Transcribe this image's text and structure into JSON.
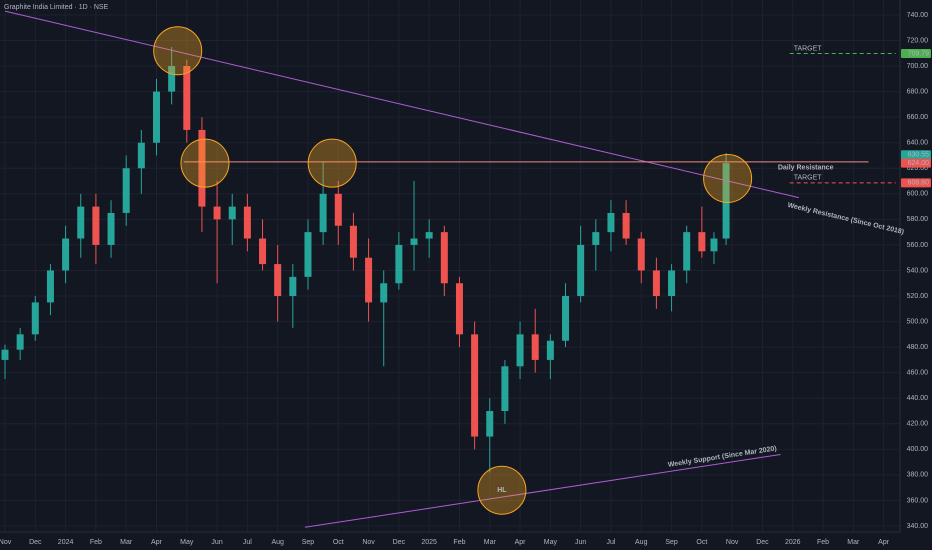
{
  "chart_data": {
    "type": "candlestick",
    "title": "Graphite India Limited · 1D · NSE",
    "x": [
      0,
      0.5,
      1,
      1.5,
      2,
      2.5,
      3,
      3.5,
      4,
      4.5,
      5,
      5.5,
      6,
      6.5,
      7,
      7.5,
      8,
      8.5,
      9,
      9.5,
      10,
      10.5,
      11,
      11.5,
      12,
      12.5,
      13,
      13.5,
      14,
      14.5,
      15,
      15.5,
      16,
      16.5,
      17,
      17.5,
      18,
      18.5,
      19,
      19.5,
      20,
      20.5,
      21,
      21.5,
      22,
      22.5,
      23,
      23.4,
      23.8
    ],
    "open": [
      470,
      478,
      490,
      515,
      540,
      565,
      590,
      560,
      585,
      620,
      640,
      680,
      700,
      650,
      590,
      580,
      590,
      565,
      545,
      520,
      535,
      570,
      600,
      575,
      550,
      515,
      530,
      560,
      565,
      570,
      530,
      490,
      410,
      430,
      465,
      490,
      470,
      485,
      520,
      560,
      570,
      585,
      565,
      540,
      520,
      540,
      570,
      555,
      565
    ],
    "high": [
      482,
      495,
      520,
      545,
      575,
      600,
      600,
      595,
      630,
      650,
      690,
      715,
      705,
      660,
      610,
      600,
      600,
      580,
      560,
      545,
      580,
      625,
      610,
      585,
      565,
      540,
      570,
      610,
      580,
      575,
      535,
      500,
      440,
      470,
      500,
      510,
      490,
      530,
      575,
      580,
      595,
      595,
      570,
      550,
      545,
      575,
      590,
      570,
      632
    ],
    "low": [
      455,
      470,
      485,
      505,
      530,
      550,
      545,
      550,
      575,
      600,
      630,
      670,
      640,
      570,
      530,
      560,
      555,
      540,
      500,
      495,
      525,
      560,
      560,
      540,
      500,
      465,
      525,
      540,
      550,
      520,
      480,
      400,
      382,
      420,
      455,
      460,
      455,
      480,
      515,
      540,
      555,
      560,
      530,
      510,
      508,
      530,
      550,
      545,
      560
    ],
    "close": [
      478,
      490,
      515,
      540,
      565,
      590,
      560,
      585,
      620,
      640,
      680,
      700,
      650,
      590,
      580,
      590,
      565,
      545,
      520,
      535,
      570,
      600,
      575,
      550,
      515,
      530,
      560,
      565,
      570,
      530,
      490,
      410,
      430,
      465,
      490,
      470,
      485,
      520,
      560,
      570,
      585,
      565,
      540,
      520,
      540,
      570,
      555,
      565,
      624
    ],
    "up_color": "#26a69a",
    "down_color": "#ef5350",
    "xlim": [
      -0.165,
      29.54
    ],
    "ylim": [
      335.3,
      751.7
    ],
    "xticks": [
      {
        "value": 0,
        "label": "Nov"
      },
      {
        "value": 1,
        "label": "Dec"
      },
      {
        "value": 2,
        "label": "2024"
      },
      {
        "value": 3,
        "label": "Feb"
      },
      {
        "value": 4,
        "label": "Mar"
      },
      {
        "value": 5,
        "label": "Apr"
      },
      {
        "value": 6,
        "label": "May"
      },
      {
        "value": 7,
        "label": "Jun"
      },
      {
        "value": 8,
        "label": "Jul"
      },
      {
        "value": 9,
        "label": "Aug"
      },
      {
        "value": 10,
        "label": "Sep"
      },
      {
        "value": 11,
        "label": "Oct"
      },
      {
        "value": 12,
        "label": "Nov"
      },
      {
        "value": 13,
        "label": "Dec"
      },
      {
        "value": 14,
        "label": "2025"
      },
      {
        "value": 15,
        "label": "Feb"
      },
      {
        "value": 16,
        "label": "Mar"
      },
      {
        "value": 17,
        "label": "Apr"
      },
      {
        "value": 18,
        "label": "May"
      },
      {
        "value": 19,
        "label": "Jun"
      },
      {
        "value": 20,
        "label": "Jul"
      },
      {
        "value": 21,
        "label": "Aug"
      },
      {
        "value": 22,
        "label": "Sep"
      },
      {
        "value": 23,
        "label": "Oct"
      },
      {
        "value": 24,
        "label": "Nov"
      },
      {
        "value": 25,
        "label": "Dec"
      },
      {
        "value": 26,
        "label": "2026"
      },
      {
        "value": 27,
        "label": "Feb"
      },
      {
        "value": 28,
        "label": "Mar"
      },
      {
        "value": 29,
        "label": "Apr"
      }
    ],
    "yticks": [
      {
        "value": 340,
        "label": "340.00"
      },
      {
        "value": 360,
        "label": "360.00"
      },
      {
        "value": 380,
        "label": "380.00"
      },
      {
        "value": 400,
        "label": "400.00"
      },
      {
        "value": 420,
        "label": "420.00"
      },
      {
        "value": 440,
        "label": "440.00"
      },
      {
        "value": 460,
        "label": "460.00"
      },
      {
        "value": 480,
        "label": "480.00"
      },
      {
        "value": 500,
        "label": "500.00"
      },
      {
        "value": 520,
        "label": "520.00"
      },
      {
        "value": 540,
        "label": "540.00"
      },
      {
        "value": 560,
        "label": "560.00"
      },
      {
        "value": 580,
        "label": "580.00"
      },
      {
        "value": 600,
        "label": "600.00"
      },
      {
        "value": 620,
        "label": "620.00"
      },
      {
        "value": 640,
        "label": "640.00"
      },
      {
        "value": 660,
        "label": "660.00"
      },
      {
        "value": 680,
        "label": "680.00"
      },
      {
        "value": 700,
        "label": "700.00"
      },
      {
        "value": 720,
        "label": "720.00"
      },
      {
        "value": 740,
        "label": "740.00"
      }
    ],
    "grid": true,
    "trend_lines": [
      {
        "label": "Weekly Resistance (Since Oct 2018)",
        "x": [
          0,
          26.2
        ],
        "y": [
          743,
          597
        ],
        "color": "#b05cd6"
      },
      {
        "label": "Daily Resistance",
        "x": [
          5.9,
          28.5
        ],
        "y": [
          625,
          625
        ],
        "color": "#f28b82"
      },
      {
        "label": "Weekly Support (Since Mar 2020)",
        "x": [
          9.9,
          25.6
        ],
        "y": [
          339,
          396
        ],
        "color": "#b05cd6"
      }
    ],
    "targets": [
      {
        "label": "TARGET",
        "value": 709.79,
        "x": [
          25.9,
          29.4
        ],
        "color": "#4caf50"
      },
      {
        "label": "TARGET",
        "value": 608.6,
        "x": [
          25.9,
          29.4
        ],
        "color": "#ef5350"
      }
    ],
    "highlights": [
      {
        "x": 5.7,
        "y": 712
      },
      {
        "x": 6.6,
        "y": 624
      },
      {
        "x": 10.8,
        "y": 624
      },
      {
        "x": 23.85,
        "y": 612
      },
      {
        "x": 16.4,
        "y": 368,
        "label": "HL"
      }
    ],
    "price_labels": [
      {
        "value": 709.79,
        "color": "#4caf50"
      },
      {
        "value": 630.55,
        "color": "#26a69a"
      },
      {
        "value": 624,
        "label": "624.00",
        "color": "#ef5350"
      },
      {
        "value": 608.6,
        "label": "608.60",
        "color": "#ef5350"
      }
    ]
  }
}
